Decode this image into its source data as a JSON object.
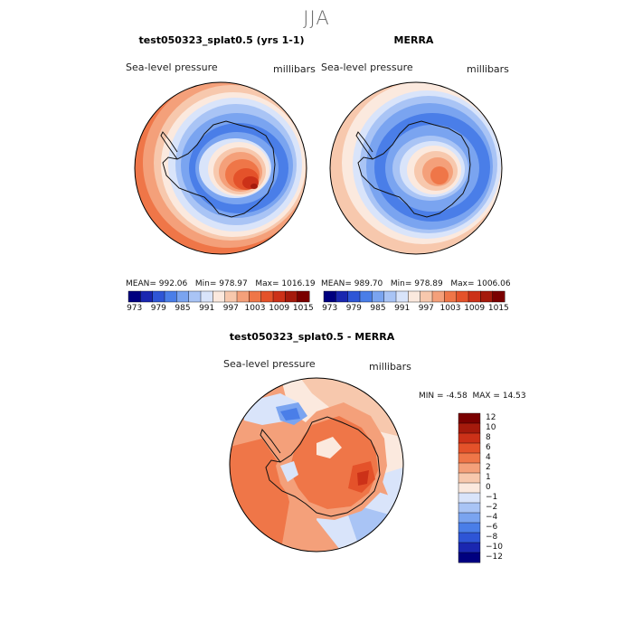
{
  "page": {
    "season": "JJA"
  },
  "chart_data": [
    {
      "type": "heatmap",
      "title": "test050323_splat0.5 (yrs 1-1)",
      "variable_label": "Sea-level pressure",
      "units_label": "millibars",
      "stats": {
        "mean_label": "MEAN=",
        "mean": "992.06",
        "min_label": "Min=",
        "min": "978.97",
        "max_label": "Max=",
        "max": "1016.19"
      },
      "colorbar_levels": [
        973,
        976,
        979,
        982,
        985,
        988,
        991,
        994,
        997,
        1000,
        1003,
        1006,
        1009,
        1012,
        1015
      ],
      "colorbar_tick_labels": [
        "973",
        "979",
        "985",
        "991",
        "997",
        "1003",
        "1009",
        "1015"
      ]
    },
    {
      "type": "heatmap",
      "title": "MERRA",
      "variable_label": "Sea-level pressure",
      "units_label": "millibars",
      "stats": {
        "mean_label": "MEAN=",
        "mean": "989.70",
        "min_label": "Min=",
        "min": "978.89",
        "max_label": "Max=",
        "max": "1006.06"
      },
      "colorbar_levels": [
        973,
        976,
        979,
        982,
        985,
        988,
        991,
        994,
        997,
        1000,
        1003,
        1006,
        1009,
        1012,
        1015
      ],
      "colorbar_tick_labels": [
        "973",
        "979",
        "985",
        "991",
        "997",
        "1003",
        "1009",
        "1015"
      ]
    },
    {
      "type": "heatmap",
      "title": "test050323_splat0.5 - MERRA",
      "variable_label": "Sea-level pressure",
      "units_label": "millibars",
      "stats": {
        "min_label": "MIN =",
        "min": "-4.58",
        "max_label": "MAX =",
        "max": "14.53"
      },
      "colorbar_levels": [
        12,
        10,
        8,
        6,
        4,
        2,
        1,
        0,
        -1,
        -2,
        -4,
        -6,
        -8,
        -10,
        -12
      ],
      "colorbar_tick_labels": [
        "12",
        "10",
        "8",
        "6",
        "4",
        "2",
        "1",
        "0",
        "−1",
        "−2",
        "−4",
        "−6",
        "−8",
        "−10",
        "−12"
      ]
    }
  ],
  "colors": {
    "scale15": [
      "#00007f",
      "#1a27b0",
      "#2e55d6",
      "#4a7ee8",
      "#7aa4f0",
      "#a9c4f5",
      "#d9e4fa",
      "#fbe9de",
      "#f7c8ad",
      "#f4a07a",
      "#ef7648",
      "#e4522a",
      "#cc3118",
      "#a51a0c",
      "#7a0000"
    ],
    "diff15": [
      "#7a0000",
      "#a51a0c",
      "#cc3118",
      "#e4522a",
      "#ef7648",
      "#f4a07a",
      "#f7c8ad",
      "#fbe9de",
      "#d9e4fa",
      "#a9c4f5",
      "#7aa4f0",
      "#4a7ee8",
      "#2e55d6",
      "#1a27b0",
      "#00007f"
    ]
  }
}
